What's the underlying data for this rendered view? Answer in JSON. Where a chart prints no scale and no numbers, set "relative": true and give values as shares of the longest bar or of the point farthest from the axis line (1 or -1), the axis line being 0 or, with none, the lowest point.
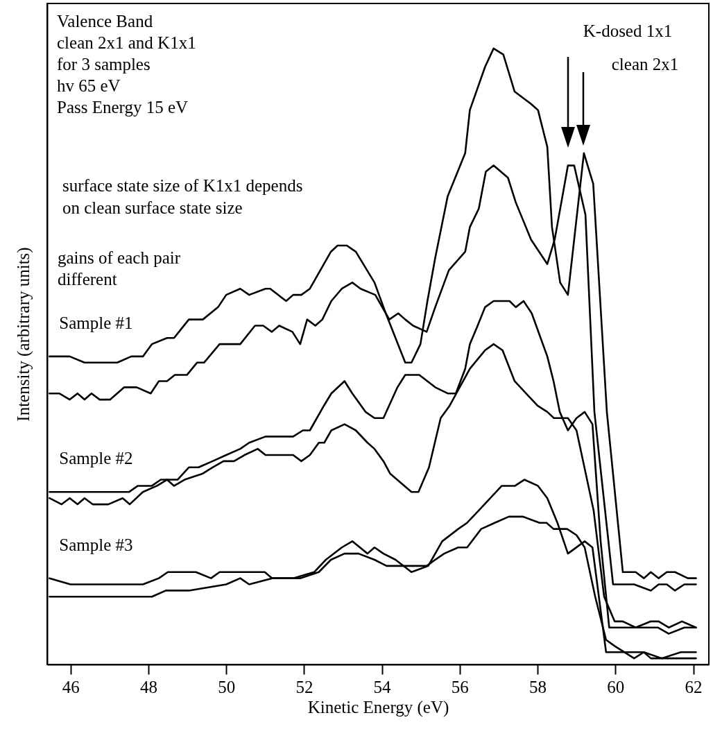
{
  "chart_data": {
    "type": "line",
    "relative": true,
    "xlabel": "Kinetic Energy (eV)",
    "ylabel": "Intensity (arbitrary units)",
    "xlim": [
      45.4,
      62.4
    ],
    "xticks": [
      46,
      48,
      50,
      52,
      54,
      56,
      58,
      60,
      62
    ],
    "grid": false,
    "marker": "none",
    "line_style": "solid",
    "annotations": [
      "Valence Band",
      "clean 2x1 and K1x1",
      "for 3 samples",
      "hv 65 eV",
      "Pass Energy 15 eV",
      "surface state size of K1x1 depends",
      "on clean surface state size",
      "gains of each pair",
      "different",
      "K-dosed 1x1",
      "clean 2x1"
    ],
    "series": [
      {
        "name": "Sample #1",
        "color": "#000000",
        "x": [
          45.46,
          45.77,
          45.98,
          46.36,
          46.75,
          46.97,
          47.2,
          47.56,
          47.86,
          48.09,
          48.48,
          48.66,
          49.04,
          49.4,
          49.79,
          50.0,
          50.36,
          50.59,
          51.01,
          51.13,
          51.54,
          51.72,
          51.93,
          52.15,
          52.69,
          52.86,
          53.1,
          53.33,
          53.81,
          54.1,
          54.35,
          54.6,
          54.76,
          54.99,
          55.17,
          55.37,
          55.69,
          56.14,
          56.26,
          56.65,
          56.87,
          57.12,
          57.41,
          57.83,
          58.01,
          58.25,
          58.37,
          58.58,
          58.78,
          59.19,
          59.43,
          59.78,
          60.19,
          60.37,
          60.52,
          60.73,
          60.91,
          61.11,
          61.32,
          61.53,
          61.86,
          62.07
        ],
        "values": [
          0.5,
          0.5,
          0.5,
          0.49,
          0.49,
          0.49,
          0.49,
          0.5,
          0.5,
          0.52,
          0.53,
          0.53,
          0.56,
          0.56,
          0.58,
          0.6,
          0.61,
          0.6,
          0.61,
          0.61,
          0.59,
          0.6,
          0.6,
          0.61,
          0.67,
          0.68,
          0.68,
          0.67,
          0.62,
          0.57,
          0.53,
          0.49,
          0.49,
          0.52,
          0.59,
          0.66,
          0.76,
          0.83,
          0.9,
          0.97,
          1.0,
          0.99,
          0.93,
          0.91,
          0.9,
          0.84,
          0.71,
          0.62,
          0.6,
          0.83,
          0.78,
          0.41,
          0.15,
          0.15,
          0.15,
          0.14,
          0.15,
          0.14,
          0.15,
          0.15,
          0.14,
          0.14
        ]
      },
      {
        "color": "#000000",
        "x": [
          45.46,
          45.71,
          45.98,
          46.18,
          46.36,
          46.54,
          46.75,
          47.02,
          47.38,
          47.7,
          48.06,
          48.27,
          48.48,
          48.68,
          48.99,
          49.25,
          49.43,
          49.83,
          50.18,
          50.36,
          50.74,
          50.95,
          51.17,
          51.36,
          51.7,
          51.9,
          52.08,
          52.29,
          52.47,
          52.7,
          52.97,
          53.24,
          53.45,
          53.83,
          54.1,
          54.19,
          54.42,
          54.6,
          54.8,
          55.15,
          55.37,
          55.72,
          56.14,
          56.26,
          56.49,
          56.67,
          56.87,
          57.24,
          57.44,
          57.83,
          58.25,
          58.44,
          58.78,
          58.94,
          59.23,
          59.46,
          59.94,
          60.19,
          60.48,
          60.91,
          61.11,
          61.32,
          61.53,
          61.77,
          62.07
        ],
        "values": [
          0.44,
          0.44,
          0.43,
          0.44,
          0.43,
          0.44,
          0.43,
          0.43,
          0.45,
          0.45,
          0.44,
          0.46,
          0.46,
          0.47,
          0.47,
          0.49,
          0.49,
          0.52,
          0.52,
          0.52,
          0.55,
          0.55,
          0.54,
          0.55,
          0.54,
          0.52,
          0.56,
          0.55,
          0.56,
          0.59,
          0.61,
          0.62,
          0.61,
          0.6,
          0.57,
          0.56,
          0.57,
          0.56,
          0.55,
          0.54,
          0.58,
          0.64,
          0.67,
          0.71,
          0.74,
          0.8,
          0.81,
          0.79,
          0.75,
          0.69,
          0.65,
          0.69,
          0.81,
          0.81,
          0.73,
          0.41,
          0.13,
          0.13,
          0.13,
          0.12,
          0.13,
          0.13,
          0.12,
          0.13,
          0.13
        ]
      },
      {
        "name": "Sample #2",
        "color": "#000000",
        "x": [
          45.46,
          45.77,
          46.13,
          46.36,
          46.54,
          46.79,
          47.14,
          47.5,
          47.73,
          48.09,
          48.32,
          48.54,
          48.75,
          49.04,
          49.29,
          49.65,
          50.0,
          50.36,
          50.59,
          51.01,
          51.17,
          51.54,
          51.72,
          51.97,
          52.15,
          52.51,
          52.7,
          53.04,
          53.24,
          53.58,
          53.81,
          54.04,
          54.4,
          54.6,
          54.96,
          55.37,
          55.69,
          55.9,
          56.14,
          56.26,
          56.46,
          56.65,
          56.87,
          57.12,
          57.28,
          57.44,
          57.64,
          57.85,
          58.25,
          58.41,
          58.57,
          58.78,
          59.0,
          59.21,
          59.41,
          59.62,
          59.84,
          60.37,
          61.09,
          61.37,
          61.77,
          62.07
        ],
        "values": [
          0.28,
          0.28,
          0.28,
          0.28,
          0.28,
          0.28,
          0.28,
          0.28,
          0.29,
          0.29,
          0.3,
          0.3,
          0.3,
          0.32,
          0.32,
          0.33,
          0.34,
          0.35,
          0.36,
          0.37,
          0.37,
          0.37,
          0.37,
          0.38,
          0.38,
          0.42,
          0.44,
          0.46,
          0.44,
          0.41,
          0.4,
          0.4,
          0.45,
          0.47,
          0.47,
          0.45,
          0.44,
          0.44,
          0.48,
          0.52,
          0.55,
          0.58,
          0.59,
          0.59,
          0.59,
          0.58,
          0.59,
          0.57,
          0.5,
          0.46,
          0.41,
          0.38,
          0.4,
          0.41,
          0.39,
          0.2,
          0.06,
          0.06,
          0.06,
          0.05,
          0.06,
          0.06
        ]
      },
      {
        "color": "#000000",
        "x": [
          45.46,
          45.77,
          45.98,
          46.18,
          46.36,
          46.57,
          46.97,
          47.34,
          47.52,
          47.86,
          48.22,
          48.48,
          48.66,
          48.93,
          49.4,
          49.65,
          49.93,
          50.2,
          50.47,
          50.81,
          51.01,
          51.36,
          51.72,
          51.93,
          52.15,
          52.38,
          52.52,
          52.7,
          53.04,
          53.33,
          53.63,
          53.81,
          54.04,
          54.21,
          54.76,
          54.94,
          55.21,
          55.51,
          55.74,
          56.26,
          56.65,
          56.87,
          57.1,
          57.41,
          58.0,
          58.25,
          58.42,
          58.6,
          58.78,
          59.0,
          59.17,
          59.44,
          59.71,
          59.98,
          60.19,
          60.52,
          60.91,
          61.11,
          61.37,
          61.71,
          62.07
        ],
        "values": [
          0.27,
          0.26,
          0.27,
          0.26,
          0.27,
          0.26,
          0.26,
          0.27,
          0.26,
          0.28,
          0.29,
          0.3,
          0.29,
          0.3,
          0.31,
          0.32,
          0.33,
          0.33,
          0.34,
          0.35,
          0.34,
          0.34,
          0.34,
          0.33,
          0.34,
          0.36,
          0.36,
          0.38,
          0.39,
          0.38,
          0.36,
          0.35,
          0.33,
          0.31,
          0.28,
          0.28,
          0.32,
          0.4,
          0.42,
          0.48,
          0.51,
          0.52,
          0.51,
          0.46,
          0.42,
          0.41,
          0.4,
          0.4,
          0.4,
          0.38,
          0.33,
          0.25,
          0.11,
          0.07,
          0.07,
          0.06,
          0.07,
          0.07,
          0.06,
          0.07,
          0.06
        ]
      },
      {
        "name": "Sample #3",
        "color": "#000000",
        "x": [
          45.46,
          46.0,
          46.21,
          46.54,
          46.79,
          47.14,
          47.5,
          47.86,
          48.27,
          48.5,
          49.22,
          49.61,
          49.83,
          50.36,
          50.59,
          50.77,
          50.99,
          51.18,
          51.72,
          52.26,
          52.56,
          52.97,
          53.24,
          53.63,
          53.81,
          54.04,
          54.35,
          54.76,
          55.19,
          55.55,
          55.96,
          56.19,
          56.49,
          57.08,
          57.42,
          57.66,
          58.01,
          58.25,
          58.51,
          58.78,
          59.21,
          59.41,
          59.76,
          60.02,
          60.3,
          60.73,
          61.19,
          61.68,
          62.07
        ],
        "values": [
          0.14,
          0.13,
          0.13,
          0.13,
          0.13,
          0.13,
          0.13,
          0.13,
          0.14,
          0.15,
          0.15,
          0.14,
          0.15,
          0.15,
          0.15,
          0.15,
          0.15,
          0.14,
          0.14,
          0.15,
          0.17,
          0.19,
          0.2,
          0.18,
          0.19,
          0.18,
          0.17,
          0.15,
          0.16,
          0.2,
          0.22,
          0.23,
          0.25,
          0.29,
          0.29,
          0.3,
          0.29,
          0.27,
          0.23,
          0.18,
          0.2,
          0.19,
          0.02,
          0.02,
          0.02,
          0.02,
          0.01,
          0.02,
          0.02
        ]
      },
      {
        "color": "#000000",
        "x": [
          45.46,
          45.95,
          47.5,
          48.09,
          48.45,
          48.68,
          49.04,
          50.0,
          50.36,
          50.59,
          51.18,
          51.9,
          52.38,
          52.69,
          53.04,
          53.4,
          53.81,
          54.12,
          54.97,
          55.15,
          55.37,
          55.6,
          55.96,
          56.19,
          56.55,
          56.9,
          57.26,
          57.62,
          58.05,
          58.23,
          58.41,
          58.76,
          59.0,
          59.21,
          59.48,
          59.76,
          59.98,
          60.48,
          60.73,
          60.91,
          61.71,
          62.07
        ],
        "values": [
          0.11,
          0.11,
          0.11,
          0.11,
          0.12,
          0.12,
          0.12,
          0.13,
          0.14,
          0.13,
          0.14,
          0.14,
          0.15,
          0.17,
          0.18,
          0.18,
          0.17,
          0.16,
          0.16,
          0.16,
          0.17,
          0.18,
          0.19,
          0.19,
          0.22,
          0.23,
          0.24,
          0.24,
          0.23,
          0.23,
          0.22,
          0.22,
          0.21,
          0.19,
          0.11,
          0.04,
          0.03,
          0.01,
          0.02,
          0.01,
          0.01,
          0.01
        ]
      }
    ]
  }
}
